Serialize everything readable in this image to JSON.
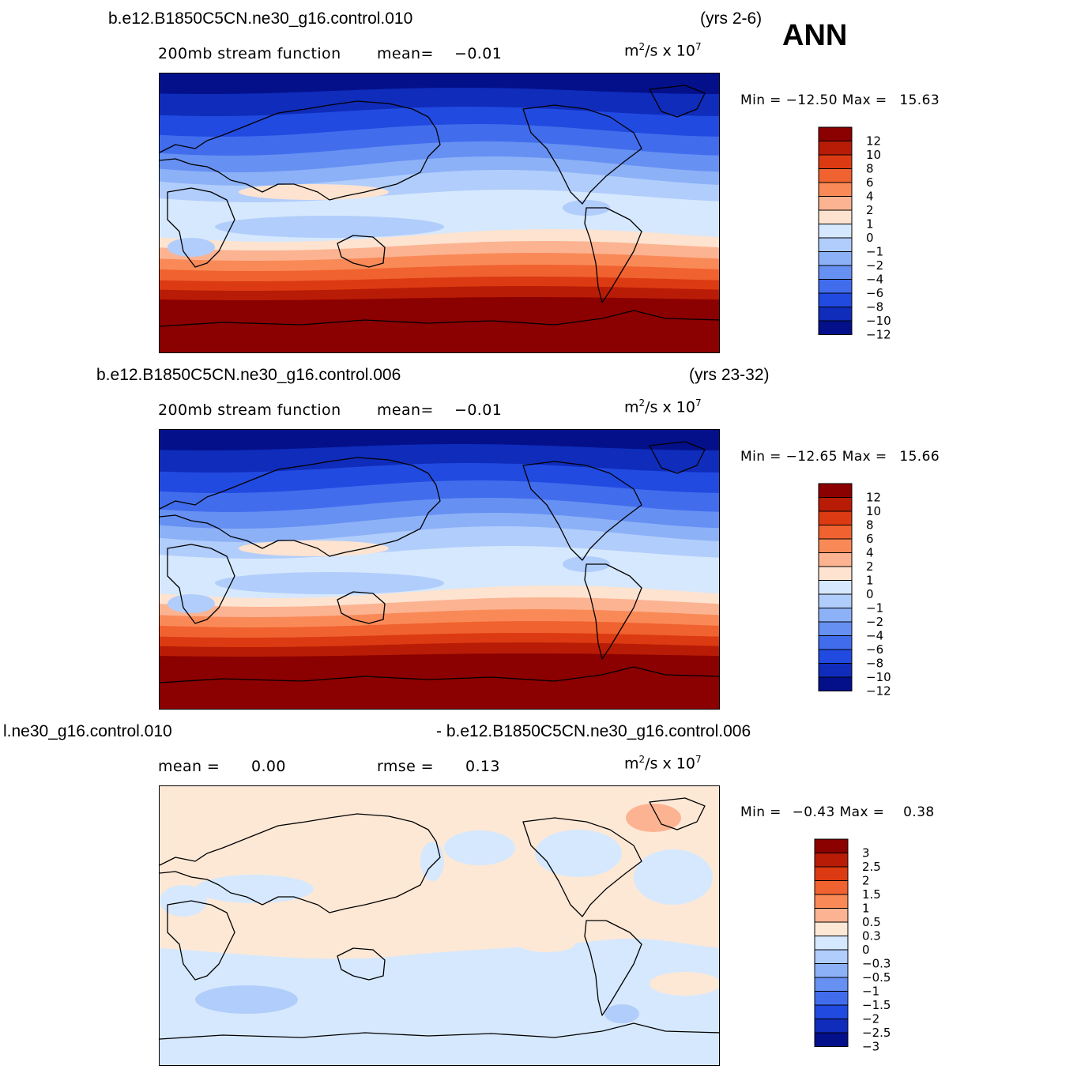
{
  "season": "ANN",
  "units": {
    "base": "m",
    "power": "2",
    "per": "/s x 10",
    "exp": "7"
  },
  "panels": [
    {
      "case": "b.e12.B1850C5CN.ne30_g16.control.010",
      "years": "(yrs 2-6)",
      "subtitle": "200mb stream function",
      "stat1_label": "mean=",
      "stat1_value": "−0.01",
      "min_label": "Min =",
      "min_value": "−12.50",
      "max_label": "Max =",
      "max_value": "15.63",
      "levels": [
        "12",
        "10",
        "8",
        "6",
        "4",
        "2",
        "1",
        "0",
        "−1",
        "−2",
        "−4",
        "−6",
        "−8",
        "−10",
        "−12"
      ]
    },
    {
      "case": "b.e12.B1850C5CN.ne30_g16.control.006",
      "years": "(yrs 23-32)",
      "subtitle": "200mb stream function",
      "stat1_label": "mean=",
      "stat1_value": "−0.01",
      "min_label": "Min =",
      "min_value": "−12.65",
      "max_label": "Max =",
      "max_value": "15.66",
      "levels": [
        "12",
        "10",
        "8",
        "6",
        "4",
        "2",
        "1",
        "0",
        "−1",
        "−2",
        "−4",
        "−6",
        "−8",
        "−10",
        "−12"
      ]
    },
    {
      "case_left": "l.ne30_g16.control.010",
      "case_right": "- b.e12.B1850C5CN.ne30_g16.control.006",
      "stat1_label": "mean =",
      "stat1_value": "0.00",
      "stat2_label": "rmse =",
      "stat2_value": "0.13",
      "min_label": "Min =",
      "min_value": "−0.43",
      "max_label": "Max =",
      "max_value": "0.38",
      "levels": [
        "3",
        "2.5",
        "2",
        "1.5",
        "1",
        "0.5",
        "0.3",
        "0",
        "−0.3",
        "−0.5",
        "−1",
        "−1.5",
        "−2",
        "−2.5",
        "−3"
      ]
    }
  ],
  "colors": {
    "abs_scale": [
      "#8b0000",
      "#b81c06",
      "#dc3a12",
      "#f0622f",
      "#f98a58",
      "#fcb391",
      "#fde3d0",
      "#d6e8fd",
      "#b1cdfb",
      "#8cb1f7",
      "#6690f2",
      "#416ded",
      "#214ae0",
      "#0f2cbb",
      "#04108a"
    ],
    "diff_scale": [
      "#8b0000",
      "#b81c06",
      "#dc3a12",
      "#f0622f",
      "#f98a58",
      "#fcb391",
      "#fde8d6",
      "#d6e8fd",
      "#b1cdfb",
      "#8cb1f7",
      "#6690f2",
      "#416ded",
      "#214ae0",
      "#0f2cbb",
      "#04108a"
    ]
  }
}
